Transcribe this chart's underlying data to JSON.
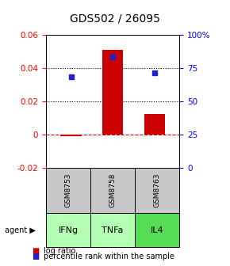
{
  "title": "GDS502 / 26095",
  "samples": [
    "GSM8753",
    "GSM8758",
    "GSM8763"
  ],
  "agents": [
    "IFNg",
    "TNFa",
    "IL4"
  ],
  "log_ratios": [
    -0.001,
    0.051,
    0.012
  ],
  "percentile_ranks": [
    0.68,
    0.83,
    0.715
  ],
  "ylim_left": [
    -0.02,
    0.06
  ],
  "left_yticks": [
    -0.02,
    0.0,
    0.02,
    0.04,
    0.06
  ],
  "left_yticklabels": [
    "-0.02",
    "0",
    "0.02",
    "0.04",
    "0.06"
  ],
  "right_yticks": [
    0.0,
    0.25,
    0.5,
    0.75,
    1.0
  ],
  "right_yticklabels": [
    "0",
    "25",
    "50",
    "75",
    "100%"
  ],
  "bar_color": "#cc0000",
  "dot_color": "#2222cc",
  "hline_zero_color": "#cc0000",
  "hline_dotted_values": [
    0.02,
    0.04
  ],
  "gray_bg": "#c8c8c8",
  "agent_colors": [
    "#b3ffb3",
    "#b3ffb3",
    "#55dd55"
  ],
  "title_fontsize": 10,
  "tick_fontsize": 7.5,
  "legend_fontsize": 7
}
